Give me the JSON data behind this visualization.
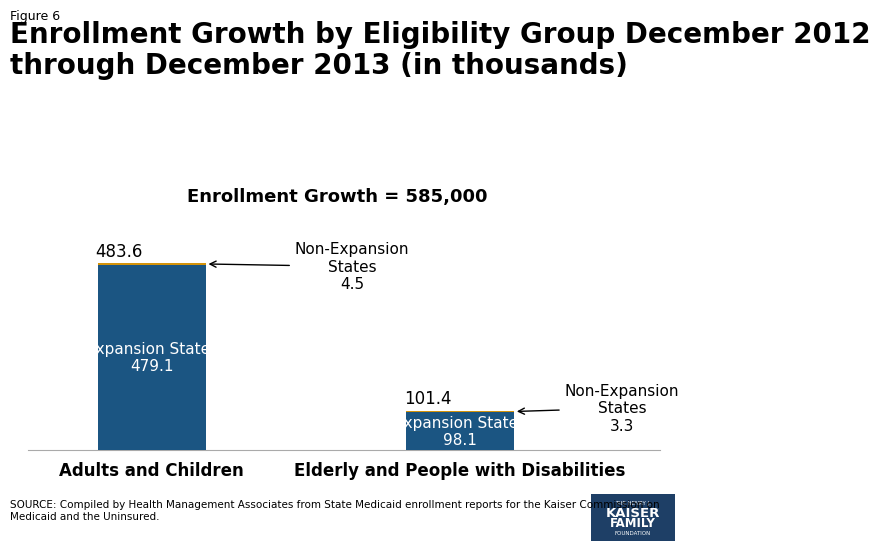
{
  "figure_label": "Figure 6",
  "title": "Enrollment Growth by Eligibility Group December 2012\nthrough December 2013 (in thousands)",
  "subtitle": "Enrollment Growth = 585,000",
  "categories": [
    "Adults and Children",
    "Elderly and People with Disabilities"
  ],
  "expansion_values": [
    479.1,
    98.1
  ],
  "nonexpansion_values": [
    4.5,
    3.3
  ],
  "total_values": [
    483.6,
    101.4
  ],
  "expansion_color": "#1b5582",
  "nonexpansion_color": "#d4930a",
  "background_color": "#ffffff",
  "title_fontsize": 20,
  "figure_label_fontsize": 9,
  "subtitle_fontsize": 13,
  "annotation_fontsize": 11,
  "inside_label_fontsize": 11,
  "total_label_fontsize": 12,
  "category_fontsize": 12,
  "source_text": "SOURCE: Compiled by Health Management Associates from State Medicaid enrollment reports for the Kaiser Commission on\nMedicaid and the Uninsured.",
  "source_fontsize": 7.5,
  "logo_color": "#1e3f66",
  "logo_line2": "KAISER",
  "logo_line3": "FAMILY",
  "logo_line4": "FOUNDATION"
}
